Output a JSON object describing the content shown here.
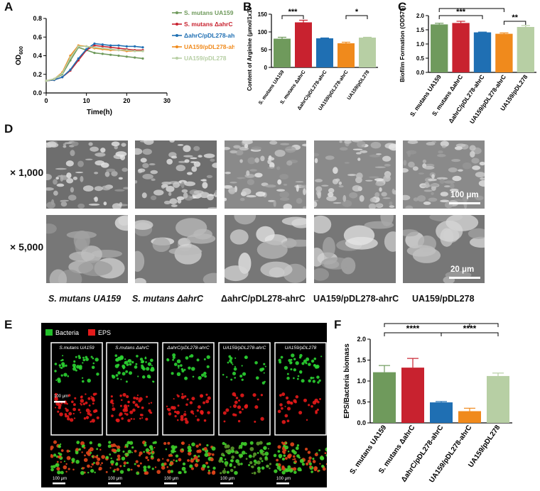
{
  "panels": {
    "a": "A",
    "b": "B",
    "c": "C",
    "d": "D",
    "e": "E",
    "f": "F"
  },
  "colors": {
    "ua159": "#6f9a5c",
    "ahrc": "#c8222f",
    "comp": "#1f6fb3",
    "oe": "#f08a1c",
    "empty": "#b7cfa4"
  },
  "chart_data": [
    {
      "id": "A",
      "type": "line",
      "xlabel": "Time(h)",
      "ylabel": "OD600",
      "xlim": [
        0,
        30
      ],
      "ylim": [
        0.0,
        0.8
      ],
      "xticks": [
        0,
        10,
        20,
        30
      ],
      "yticks": [
        "0.0",
        "0.2",
        "0.4",
        "0.6",
        "0.8"
      ],
      "legend": "right",
      "series": [
        {
          "name": "S. mutans UA159",
          "color": "#6f9a5c",
          "x": [
            0,
            2,
            4,
            6,
            8,
            10,
            12,
            14,
            16,
            18,
            20,
            22,
            24
          ],
          "y": [
            0.13,
            0.15,
            0.2,
            0.35,
            0.49,
            0.46,
            0.43,
            0.42,
            0.41,
            0.4,
            0.39,
            0.38,
            0.37
          ]
        },
        {
          "name": "S. mutans ΔahrC",
          "color": "#c8222f",
          "x": [
            0,
            2,
            4,
            6,
            8,
            10,
            12,
            14,
            16,
            18,
            20,
            22,
            24
          ],
          "y": [
            0.13,
            0.14,
            0.17,
            0.24,
            0.35,
            0.46,
            0.51,
            0.5,
            0.49,
            0.48,
            0.47,
            0.46,
            0.46
          ]
        },
        {
          "name": "ΔahrC/pDL278-ahrC",
          "color": "#1f6fb3",
          "x": [
            0,
            2,
            4,
            6,
            8,
            10,
            12,
            14,
            16,
            18,
            20,
            22,
            24
          ],
          "y": [
            0.13,
            0.14,
            0.17,
            0.25,
            0.37,
            0.47,
            0.53,
            0.52,
            0.51,
            0.51,
            0.5,
            0.5,
            0.49
          ]
        },
        {
          "name": "UA159/pDL278-ahrC",
          "color": "#f08a1c",
          "x": [
            0,
            2,
            4,
            6,
            8,
            10,
            12,
            14,
            16,
            18,
            20,
            22,
            24
          ],
          "y": [
            0.13,
            0.15,
            0.22,
            0.4,
            0.51,
            0.5,
            0.48,
            0.47,
            0.46,
            0.46,
            0.45,
            0.45,
            0.45
          ]
        },
        {
          "name": "UA159/pDL278",
          "color": "#b7cfa4",
          "x": [
            0,
            2,
            4,
            6,
            8,
            10,
            12,
            14,
            16,
            18,
            20,
            22,
            24
          ],
          "y": [
            0.13,
            0.15,
            0.21,
            0.38,
            0.5,
            0.5,
            0.49,
            0.48,
            0.47,
            0.46,
            0.46,
            0.45,
            0.45
          ]
        }
      ]
    },
    {
      "id": "B",
      "type": "bar",
      "ylabel": "Content of Arginine (μmol/1x10⁹CFU)",
      "ylim": [
        0,
        150
      ],
      "yticks": [
        "0",
        "50",
        "100",
        "150"
      ],
      "categories": [
        "S. mutans UA159",
        "S. mutans ΔahrC",
        "ΔahrC/pDL278-ahrC",
        "UA159/pDL278-ahrC",
        "UA159/pDL278"
      ],
      "values": [
        81,
        127,
        82,
        68,
        84
      ],
      "errors": [
        4,
        6,
        1,
        3,
        1
      ],
      "significance": [
        {
          "from": 0,
          "to": 1,
          "label": "***"
        },
        {
          "from": 3,
          "to": 4,
          "label": "*"
        }
      ]
    },
    {
      "id": "C",
      "type": "bar",
      "ylabel": "Biofilm Formation (OD575)",
      "ylim": [
        0.0,
        2.0
      ],
      "yticks": [
        "0.0",
        "0.5",
        "1.0",
        "1.5",
        "2.0"
      ],
      "categories": [
        "S. mutans UA159",
        "S. mutans ΔahrC",
        "ΔahrC/pDL278-ahrC",
        "UA159/pDL278-ahrC",
        "UA159/pDL278"
      ],
      "values": [
        1.69,
        1.74,
        1.41,
        1.36,
        1.6
      ],
      "errors": [
        0.04,
        0.06,
        0.01,
        0.03,
        0.05
      ],
      "significance": [
        {
          "from": 0,
          "to": 3,
          "label": "***"
        },
        {
          "from": 0,
          "to": 2,
          "label": "***"
        },
        {
          "from": 3,
          "to": 4,
          "label": "**"
        }
      ]
    },
    {
      "id": "F",
      "type": "bar",
      "ylabel": "EPS/Bacteria biomass",
      "ylim": [
        0.0,
        2.0
      ],
      "yticks": [
        "0.0",
        "0.5",
        "1.0",
        "1.5",
        "2.0"
      ],
      "categories": [
        "S. mutans UA159",
        "S. mutans ΔahrC",
        "ΔahrC/pDL278-ahrC",
        "UA159/pDL278-ahrC",
        "UA159/pDL278"
      ],
      "values": [
        1.21,
        1.32,
        0.49,
        0.28,
        1.12
      ],
      "errors": [
        0.16,
        0.22,
        0.02,
        0.07,
        0.07
      ],
      "significance": [
        {
          "from": 0,
          "to": 3,
          "label": "****"
        },
        {
          "from": 0,
          "to": 2,
          "label": "****"
        },
        {
          "from": 3,
          "to": 4,
          "label": "****"
        },
        {
          "from": 2,
          "to": 4,
          "label": "****"
        }
      ]
    }
  ],
  "sem": {
    "magnifications": [
      "× 1,000",
      "× 5,000"
    ],
    "scalebars": [
      "100 μm",
      "20 μm"
    ],
    "strains": [
      "S. mutans UA159",
      "S. mutans ΔahrC",
      "ΔahrC/pDL278-ahrC",
      "UA159/pDL278-ahrC",
      "UA159/pDL278"
    ]
  },
  "confocal": {
    "legend_bacteria": "Bacteria",
    "legend_eps": "EPS",
    "strains": [
      "S.mutans UA159",
      "S.mutans ΔahrC",
      "ΔahrC/pDL278-ahrC",
      "UA159/pDL278-ahrC",
      "UA159/pDL278"
    ],
    "scalebar": "100 μm"
  }
}
